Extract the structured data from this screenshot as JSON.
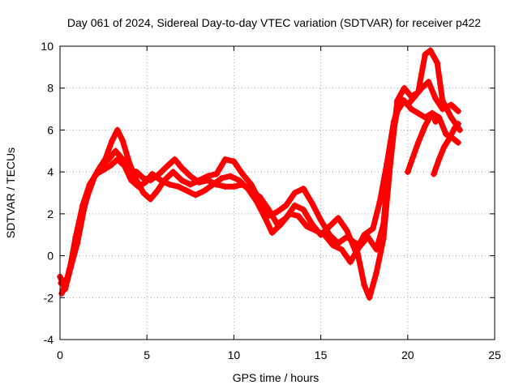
{
  "chart_data": {
    "type": "line",
    "title": "Day 061 of 2024, Sidereal Day-to-day VTEC variation (SDTVAR) for receiver p422",
    "xlabel": "GPS time / hours",
    "ylabel": "SDTVAR / TECUs",
    "xlim": [
      0,
      25
    ],
    "ylim": [
      -4,
      10
    ],
    "xticks": [
      0,
      5,
      10,
      15,
      20,
      25
    ],
    "yticks": [
      -4,
      -2,
      0,
      2,
      4,
      6,
      8,
      10
    ],
    "grid": true,
    "marker": "+",
    "color": "#ff0000",
    "series": [
      {
        "name": "track-1",
        "points": [
          [
            0,
            -1.0
          ],
          [
            0.3,
            -1.6
          ],
          [
            0.6,
            -0.6
          ],
          [
            1.0,
            0.6
          ],
          [
            1.4,
            2.3
          ],
          [
            1.8,
            3.5
          ],
          [
            2.2,
            4.1
          ],
          [
            2.6,
            4.6
          ],
          [
            3.0,
            5.5
          ],
          [
            3.3,
            6.0
          ],
          [
            3.6,
            5.5
          ],
          [
            4.0,
            4.4
          ],
          [
            4.4,
            3.6
          ],
          [
            4.8,
            3.0
          ],
          [
            5.2,
            2.7
          ],
          [
            5.6,
            3.1
          ],
          [
            6.0,
            3.6
          ],
          [
            6.5,
            4.0
          ],
          [
            7.0,
            3.6
          ],
          [
            7.5,
            3.4
          ],
          [
            8.0,
            3.6
          ],
          [
            8.5,
            3.8
          ],
          [
            9.0,
            3.9
          ],
          [
            9.5,
            4.6
          ],
          [
            10.0,
            4.5
          ],
          [
            10.5,
            3.9
          ],
          [
            11.0,
            3.4
          ],
          [
            11.5,
            2.6
          ],
          [
            12.0,
            1.9
          ],
          [
            12.5,
            2.1
          ],
          [
            13.0,
            2.4
          ],
          [
            13.5,
            3.0
          ],
          [
            14.0,
            3.2
          ],
          [
            14.5,
            2.5
          ],
          [
            15.0,
            1.7
          ],
          [
            15.5,
            1.0
          ],
          [
            16.0,
            0.6
          ],
          [
            16.5,
            0.9
          ],
          [
            17.0,
            0.6
          ],
          [
            17.5,
            -1.4
          ],
          [
            17.8,
            -2.0
          ],
          [
            18.2,
            -0.8
          ],
          [
            18.6,
            0.8
          ],
          [
            19.0,
            4.4
          ],
          [
            19.4,
            7.4
          ],
          [
            19.8,
            8.0
          ],
          [
            20.2,
            7.6
          ],
          [
            20.6,
            7.8
          ],
          [
            21.0,
            9.6
          ],
          [
            21.3,
            9.8
          ],
          [
            21.7,
            9.2
          ],
          [
            22.0,
            7.4
          ],
          [
            22.5,
            6.6
          ],
          [
            23.0,
            6.0
          ]
        ]
      },
      {
        "name": "track-2",
        "points": [
          [
            0.05,
            -1.3
          ],
          [
            0.4,
            -1.1
          ],
          [
            0.8,
            0.2
          ],
          [
            1.2,
            1.8
          ],
          [
            1.6,
            2.9
          ],
          [
            2.0,
            3.8
          ],
          [
            2.4,
            4.3
          ],
          [
            2.8,
            4.6
          ],
          [
            3.2,
            5.0
          ],
          [
            3.6,
            4.6
          ],
          [
            4.0,
            4.1
          ],
          [
            4.4,
            4.0
          ],
          [
            4.8,
            3.7
          ],
          [
            5.2,
            3.6
          ],
          [
            5.7,
            3.9
          ],
          [
            6.2,
            4.3
          ],
          [
            6.6,
            4.6
          ],
          [
            7.0,
            4.2
          ],
          [
            7.5,
            3.8
          ],
          [
            8.0,
            3.5
          ],
          [
            8.5,
            3.6
          ],
          [
            9.0,
            3.4
          ],
          [
            9.5,
            3.3
          ],
          [
            10.0,
            3.3
          ],
          [
            10.5,
            3.4
          ],
          [
            11.0,
            3.1
          ],
          [
            11.5,
            2.8
          ],
          [
            12.0,
            2.2
          ],
          [
            12.5,
            1.5
          ],
          [
            13.0,
            1.8
          ],
          [
            13.5,
            2.4
          ],
          [
            14.0,
            2.2
          ],
          [
            14.5,
            1.5
          ],
          [
            15.0,
            1.0
          ],
          [
            15.5,
            1.4
          ],
          [
            16.0,
            1.8
          ],
          [
            16.5,
            1.2
          ],
          [
            17.0,
            0.2
          ],
          [
            17.5,
            1.0
          ],
          [
            18.0,
            1.3
          ],
          [
            18.4,
            2.6
          ],
          [
            18.8,
            4.4
          ],
          [
            19.2,
            6.4
          ],
          [
            19.6,
            7.5
          ],
          [
            20.0,
            7.2
          ],
          [
            20.4,
            7.6
          ],
          [
            20.8,
            8.0
          ],
          [
            21.2,
            8.3
          ],
          [
            21.6,
            7.5
          ],
          [
            22.0,
            7.0
          ],
          [
            22.5,
            7.2
          ],
          [
            22.9,
            6.9
          ]
        ]
      },
      {
        "name": "track-3",
        "points": [
          [
            0.1,
            -1.8
          ],
          [
            0.5,
            -0.9
          ],
          [
            0.9,
            0.9
          ],
          [
            1.3,
            2.4
          ],
          [
            1.7,
            3.4
          ],
          [
            2.1,
            3.9
          ],
          [
            2.5,
            4.1
          ],
          [
            2.9,
            4.3
          ],
          [
            3.3,
            4.6
          ],
          [
            3.7,
            4.3
          ],
          [
            4.1,
            3.6
          ],
          [
            4.5,
            3.3
          ],
          [
            4.9,
            3.5
          ],
          [
            5.3,
            3.9
          ],
          [
            5.8,
            3.6
          ],
          [
            6.3,
            3.4
          ],
          [
            6.8,
            3.3
          ],
          [
            7.3,
            3.1
          ],
          [
            7.8,
            2.9
          ],
          [
            8.3,
            3.1
          ],
          [
            8.8,
            3.4
          ],
          [
            9.3,
            3.7
          ],
          [
            9.8,
            3.8
          ],
          [
            10.3,
            3.6
          ],
          [
            10.8,
            3.2
          ],
          [
            11.3,
            2.6
          ],
          [
            11.8,
            1.8
          ],
          [
            12.2,
            1.1
          ],
          [
            12.7,
            1.5
          ],
          [
            13.2,
            2.0
          ],
          [
            13.7,
            1.9
          ],
          [
            14.2,
            1.4
          ],
          [
            14.7,
            1.2
          ],
          [
            15.2,
            1.0
          ],
          [
            15.7,
            0.5
          ],
          [
            16.2,
            0.3
          ],
          [
            16.7,
            -0.3
          ],
          [
            17.2,
            0.4
          ],
          [
            17.7,
            0.9
          ],
          [
            18.2,
            0.3
          ],
          [
            18.6,
            1.5
          ],
          [
            19.0,
            5.2
          ],
          [
            19.4,
            6.9
          ],
          [
            19.8,
            7.4
          ],
          [
            20.2,
            7.0
          ],
          [
            20.6,
            6.8
          ],
          [
            21.0,
            6.6
          ],
          [
            21.4,
            6.8
          ],
          [
            21.8,
            6.6
          ],
          [
            22.2,
            5.8
          ],
          [
            22.6,
            5.6
          ],
          [
            22.9,
            5.4
          ]
        ]
      },
      {
        "name": "track-4",
        "points": [
          [
            20.0,
            4.0
          ],
          [
            20.3,
            4.7
          ],
          [
            20.6,
            5.4
          ],
          [
            21.0,
            6.2
          ],
          [
            21.4,
            6.8
          ],
          [
            21.6,
            6.4
          ]
        ]
      },
      {
        "name": "track-5",
        "points": [
          [
            21.5,
            3.9
          ],
          [
            21.8,
            4.6
          ],
          [
            22.1,
            5.2
          ],
          [
            22.4,
            5.6
          ],
          [
            22.7,
            6.1
          ],
          [
            22.9,
            6.3
          ]
        ]
      }
    ]
  }
}
